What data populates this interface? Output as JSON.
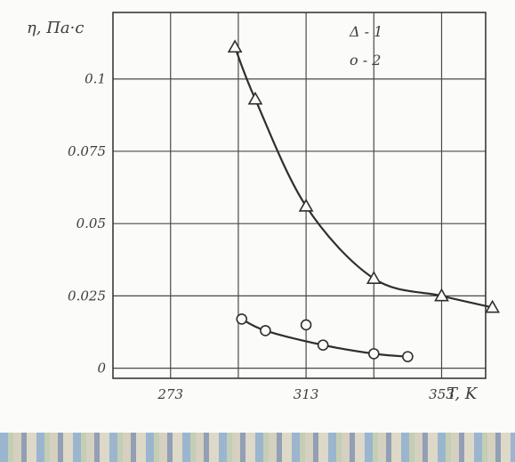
{
  "chart_data": {
    "type": "line",
    "ylabel": "η, Па·с",
    "xlabel": "T, K",
    "x_ticks": [
      "273",
      "313",
      "353"
    ],
    "y_ticks": [
      "0",
      "0.025",
      "0.05",
      "0.075",
      "0.1"
    ],
    "xlim": [
      256,
      366
    ],
    "ylim": [
      -0.0035,
      0.123
    ],
    "legend_position": "top-right",
    "grid": true,
    "series": [
      {
        "name": "1",
        "legend_label": "Δ - 1",
        "marker": "triangle",
        "x": [
          292,
          298,
          313,
          333,
          353,
          368
        ],
        "y": [
          0.111,
          0.093,
          0.056,
          0.031,
          0.025,
          0.021
        ]
      },
      {
        "name": "2",
        "legend_label": "o - 2",
        "marker": "circle",
        "x": [
          294,
          301,
          313,
          318,
          333,
          343
        ],
        "y": [
          0.017,
          0.013,
          0.015,
          0.008,
          0.005,
          0.004
        ],
        "connect_x": [
          294,
          301,
          318,
          333,
          343
        ],
        "connect_y": [
          0.017,
          0.013,
          0.008,
          0.005,
          0.004
        ]
      }
    ]
  }
}
